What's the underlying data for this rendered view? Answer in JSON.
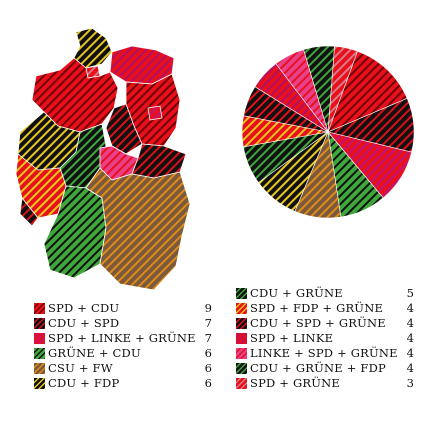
{
  "coalitions": [
    {
      "id": "spd-cdu",
      "label": "SPD + CDU",
      "count": 9,
      "base": "#e8101a",
      "stripe": "#6e0006"
    },
    {
      "id": "cdu-spd",
      "label": "CDU + SPD",
      "count": 7,
      "base": "#111111",
      "stripe": "#d8101a"
    },
    {
      "id": "spd-linke-gruene",
      "label": "SPD + LINKE + GRÜNE",
      "count": 7,
      "base": "#e8101a",
      "stripe": "#c0147a"
    },
    {
      "id": "gruene-cdu",
      "label": "GRÜNE + CDU",
      "count": 6,
      "base": "#3ea83a",
      "stripe": "#111111"
    },
    {
      "id": "csu-fw",
      "label": "CSU + FW",
      "count": 6,
      "base": "#7a5a3a",
      "stripe": "#e08a1a"
    },
    {
      "id": "cdu-fdp",
      "label": "CDU + FDP",
      "count": 6,
      "base": "#111111",
      "stripe": "#e8c81a"
    },
    {
      "id": "cdu-gruene",
      "label": "CDU + GRÜNE",
      "count": 5,
      "base": "#111111",
      "stripe": "#3ea83a"
    },
    {
      "id": "spd-fdp-gruene",
      "label": "SPD + FDP + GRÜNE",
      "count": 4,
      "base": "#e8101a",
      "stripe": "#e8c81a"
    },
    {
      "id": "cdu-spd-gruene",
      "label": "CDU + SPD + GRÜNE",
      "count": 4,
      "base": "#111111",
      "stripe": "#e8101a"
    },
    {
      "id": "spd-linke",
      "label": "SPD + LINKE",
      "count": 4,
      "base": "#e8101a",
      "stripe": "#b0106a"
    },
    {
      "id": "linke-spd-gruene",
      "label": "LINKE + SPD + GRÜNE",
      "count": 4,
      "base": "#e8408a",
      "stripe": "#e8101a"
    },
    {
      "id": "cdu-gruene-fdp",
      "label": "CDU + GRÜNE + FDP",
      "count": 4,
      "base": "#111111",
      "stripe": "#3ea83a"
    },
    {
      "id": "spd-gruene",
      "label": "SPD + GRÜNE",
      "count": 3,
      "base": "#e8101a",
      "stripe": "#d87a8a"
    }
  ]
}
